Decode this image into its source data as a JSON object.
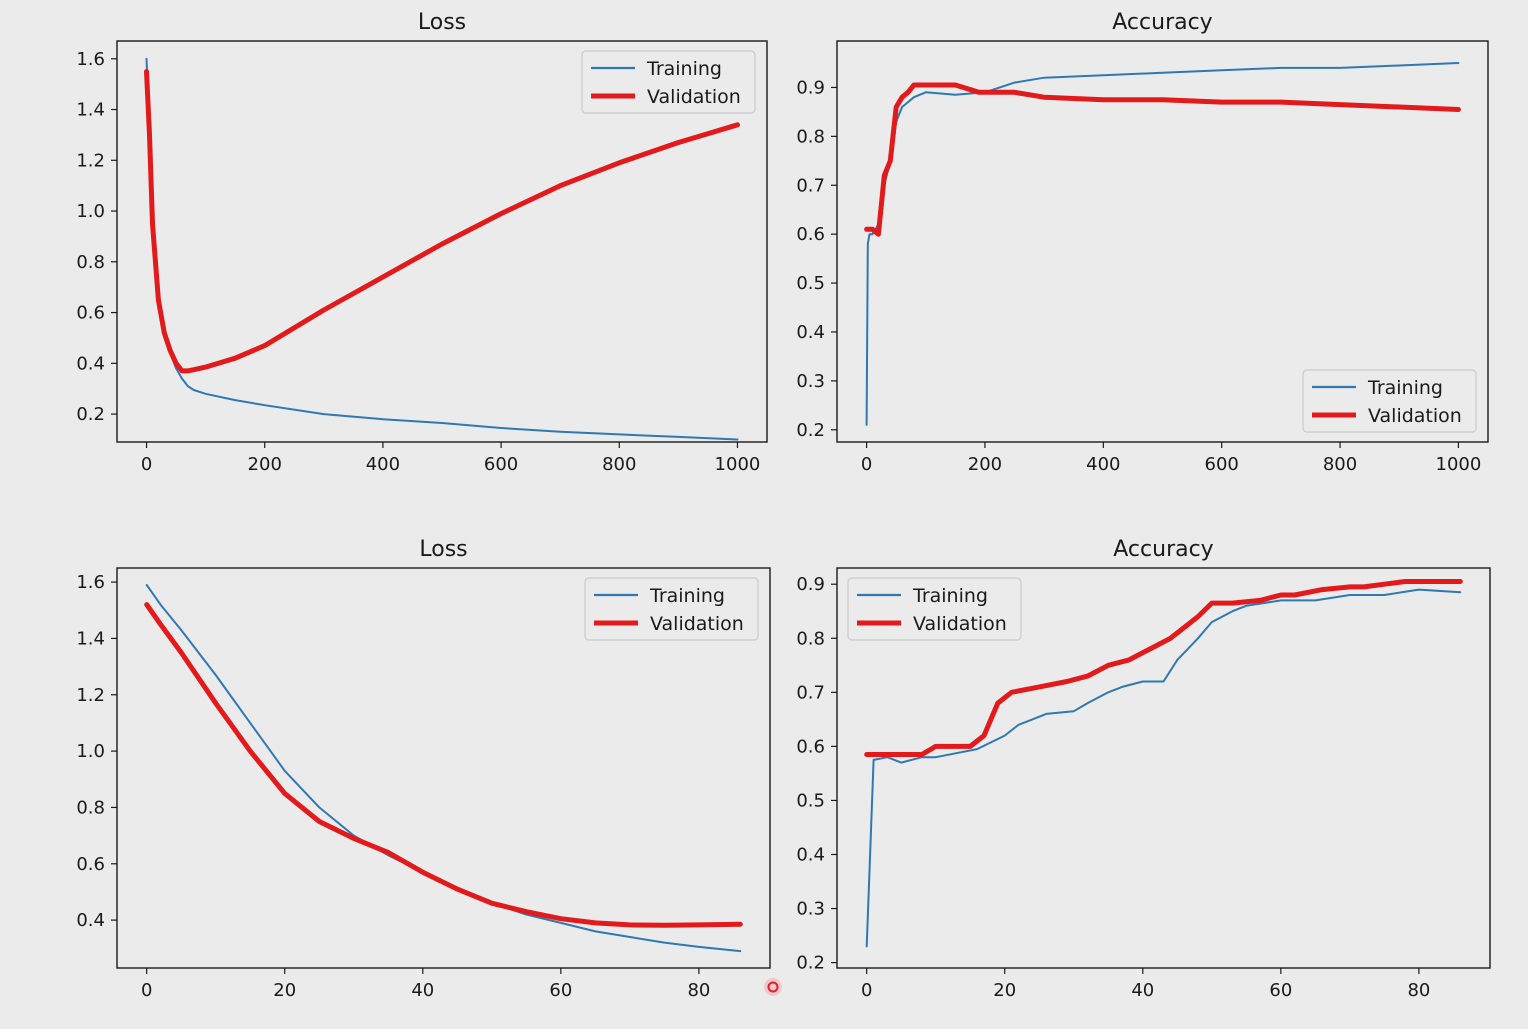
{
  "colors": {
    "background": "#ebebeb",
    "training": "#2f78b2",
    "validation": "#e31a1c",
    "cursor": "#e0202a"
  },
  "cursor_icon": "mouse-cursor-indicator",
  "chart_data": [
    {
      "type": "line",
      "title": "Loss",
      "xlabel": "",
      "ylabel": "",
      "xlim": [
        -50,
        1050
      ],
      "ylim": [
        0.09,
        1.67
      ],
      "xticks": [
        0,
        200,
        400,
        600,
        800,
        1000
      ],
      "yticks": [
        0.2,
        0.4,
        0.6,
        0.8,
        1.0,
        1.2,
        1.4,
        1.6
      ],
      "ytick_decimals": 1,
      "legend_position": "upper-right",
      "grid": false,
      "series": [
        {
          "name": "Training",
          "x": [
            0,
            5,
            10,
            20,
            30,
            40,
            50,
            60,
            70,
            80,
            100,
            150,
            200,
            300,
            400,
            500,
            600,
            700,
            800,
            900,
            1000
          ],
          "y": [
            1.6,
            1.3,
            0.95,
            0.65,
            0.52,
            0.44,
            0.38,
            0.34,
            0.31,
            0.295,
            0.28,
            0.255,
            0.235,
            0.2,
            0.18,
            0.165,
            0.145,
            0.13,
            0.12,
            0.11,
            0.1
          ]
        },
        {
          "name": "Validation",
          "x": [
            0,
            5,
            10,
            20,
            30,
            40,
            50,
            60,
            70,
            80,
            100,
            150,
            200,
            300,
            400,
            500,
            600,
            700,
            800,
            900,
            1000
          ],
          "y": [
            1.55,
            1.3,
            0.95,
            0.65,
            0.52,
            0.45,
            0.4,
            0.37,
            0.37,
            0.375,
            0.385,
            0.42,
            0.47,
            0.61,
            0.74,
            0.87,
            0.99,
            1.1,
            1.19,
            1.27,
            1.34
          ]
        }
      ]
    },
    {
      "type": "line",
      "title": "Accuracy",
      "xlabel": "",
      "ylabel": "",
      "xlim": [
        -50,
        1050
      ],
      "ylim": [
        0.175,
        0.995
      ],
      "xticks": [
        0,
        200,
        400,
        600,
        800,
        1000
      ],
      "yticks": [
        0.2,
        0.3,
        0.4,
        0.5,
        0.6,
        0.7,
        0.8,
        0.9
      ],
      "ytick_decimals": 1,
      "legend_position": "lower-right",
      "grid": false,
      "series": [
        {
          "name": "Training",
          "x": [
            0,
            2,
            5,
            10,
            20,
            30,
            40,
            50,
            60,
            70,
            80,
            100,
            150,
            200,
            250,
            300,
            400,
            500,
            600,
            700,
            800,
            900,
            1000
          ],
          "y": [
            0.21,
            0.58,
            0.6,
            0.6,
            0.62,
            0.7,
            0.75,
            0.83,
            0.86,
            0.87,
            0.88,
            0.89,
            0.885,
            0.89,
            0.91,
            0.92,
            0.925,
            0.93,
            0.935,
            0.94,
            0.94,
            0.945,
            0.95
          ]
        },
        {
          "name": "Validation",
          "x": [
            0,
            10,
            20,
            30,
            40,
            50,
            60,
            70,
            80,
            100,
            150,
            190,
            250,
            300,
            400,
            500,
            600,
            700,
            800,
            900,
            1000
          ],
          "y": [
            0.61,
            0.61,
            0.6,
            0.72,
            0.75,
            0.86,
            0.88,
            0.89,
            0.905,
            0.905,
            0.905,
            0.89,
            0.89,
            0.88,
            0.875,
            0.875,
            0.87,
            0.87,
            0.865,
            0.86,
            0.855
          ]
        }
      ]
    },
    {
      "type": "line",
      "title": "Loss",
      "xlabel": "",
      "ylabel": "",
      "xlim": [
        -4.3,
        90.3
      ],
      "ylim": [
        0.23,
        1.65
      ],
      "xticks": [
        0,
        20,
        40,
        60,
        80
      ],
      "yticks": [
        0.4,
        0.6,
        0.8,
        1.0,
        1.2,
        1.4,
        1.6
      ],
      "ytick_decimals": 1,
      "legend_position": "upper-right",
      "grid": false,
      "series": [
        {
          "name": "Training",
          "x": [
            0,
            2,
            5,
            10,
            15,
            20,
            25,
            30,
            35,
            40,
            45,
            50,
            55,
            60,
            65,
            70,
            75,
            80,
            86
          ],
          "y": [
            1.59,
            1.52,
            1.43,
            1.27,
            1.1,
            0.93,
            0.8,
            0.7,
            0.63,
            0.57,
            0.51,
            0.46,
            0.42,
            0.39,
            0.36,
            0.34,
            0.32,
            0.305,
            0.29
          ]
        },
        {
          "name": "Validation",
          "x": [
            0,
            2,
            5,
            10,
            15,
            20,
            25,
            30,
            35,
            40,
            45,
            50,
            55,
            60,
            65,
            70,
            75,
            80,
            86
          ],
          "y": [
            1.52,
            1.45,
            1.35,
            1.17,
            1.0,
            0.85,
            0.75,
            0.69,
            0.64,
            0.57,
            0.51,
            0.46,
            0.43,
            0.405,
            0.39,
            0.383,
            0.382,
            0.383,
            0.385
          ]
        }
      ]
    },
    {
      "type": "line",
      "title": "Accuracy",
      "xlabel": "",
      "ylabel": "",
      "xlim": [
        -4.3,
        90.3
      ],
      "ylim": [
        0.19,
        0.93
      ],
      "xticks": [
        0,
        20,
        40,
        60,
        80
      ],
      "yticks": [
        0.2,
        0.3,
        0.4,
        0.5,
        0.6,
        0.7,
        0.8,
        0.9
      ],
      "ytick_decimals": 1,
      "legend_position": "upper-left",
      "grid": false,
      "series": [
        {
          "name": "Training",
          "x": [
            0,
            1,
            3,
            5,
            8,
            10,
            14,
            16,
            20,
            22,
            24,
            26,
            30,
            32,
            35,
            37,
            40,
            43,
            45,
            48,
            50,
            53,
            55,
            60,
            65,
            70,
            75,
            80,
            86
          ],
          "y": [
            0.23,
            0.575,
            0.58,
            0.57,
            0.58,
            0.58,
            0.59,
            0.595,
            0.62,
            0.64,
            0.65,
            0.66,
            0.665,
            0.68,
            0.7,
            0.71,
            0.72,
            0.72,
            0.76,
            0.8,
            0.83,
            0.85,
            0.86,
            0.87,
            0.87,
            0.88,
            0.88,
            0.89,
            0.885
          ]
        },
        {
          "name": "Validation",
          "x": [
            0,
            5,
            8,
            10,
            15,
            17,
            19,
            21,
            25,
            29,
            32,
            35,
            38,
            41,
            44,
            46,
            48,
            50,
            53,
            57,
            60,
            62,
            66,
            70,
            72,
            75,
            78,
            81,
            86
          ],
          "y": [
            0.585,
            0.585,
            0.585,
            0.6,
            0.6,
            0.62,
            0.68,
            0.7,
            0.71,
            0.72,
            0.73,
            0.75,
            0.76,
            0.78,
            0.8,
            0.82,
            0.84,
            0.865,
            0.865,
            0.87,
            0.88,
            0.88,
            0.89,
            0.895,
            0.895,
            0.9,
            0.905,
            0.905,
            0.905
          ]
        }
      ]
    }
  ]
}
